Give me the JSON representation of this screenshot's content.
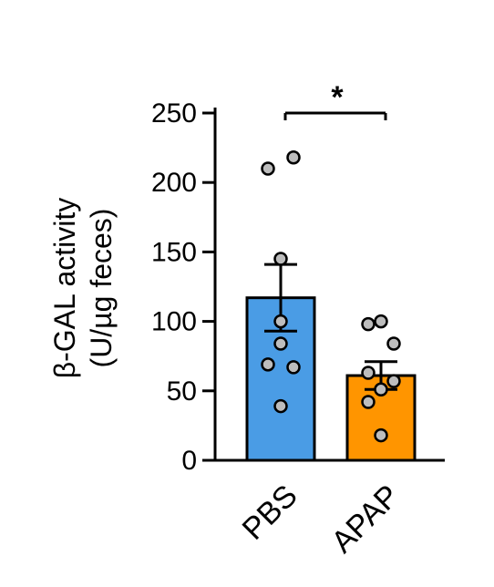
{
  "chart_data": {
    "type": "bar",
    "title": "",
    "xlabel": "",
    "ylabel": "β-GAL activity",
    "ylabel_unit": "(U/µg feces)",
    "ylim": [
      0,
      250
    ],
    "yticks": [
      0,
      50,
      100,
      150,
      200,
      250
    ],
    "categories": [
      "PBS",
      "APAP"
    ],
    "values": [
      117,
      61
    ],
    "errors": [
      24,
      10
    ],
    "colors": [
      "#4a9ce5",
      "#ff9500"
    ],
    "points": [
      [
        218,
        210,
        145,
        100,
        84,
        69,
        67,
        39
      ],
      [
        100,
        98,
        84,
        63,
        57,
        51,
        42,
        18
      ]
    ],
    "significance": {
      "pair": [
        "PBS",
        "APAP"
      ],
      "label": "*"
    },
    "grid": false,
    "legend": "none"
  }
}
